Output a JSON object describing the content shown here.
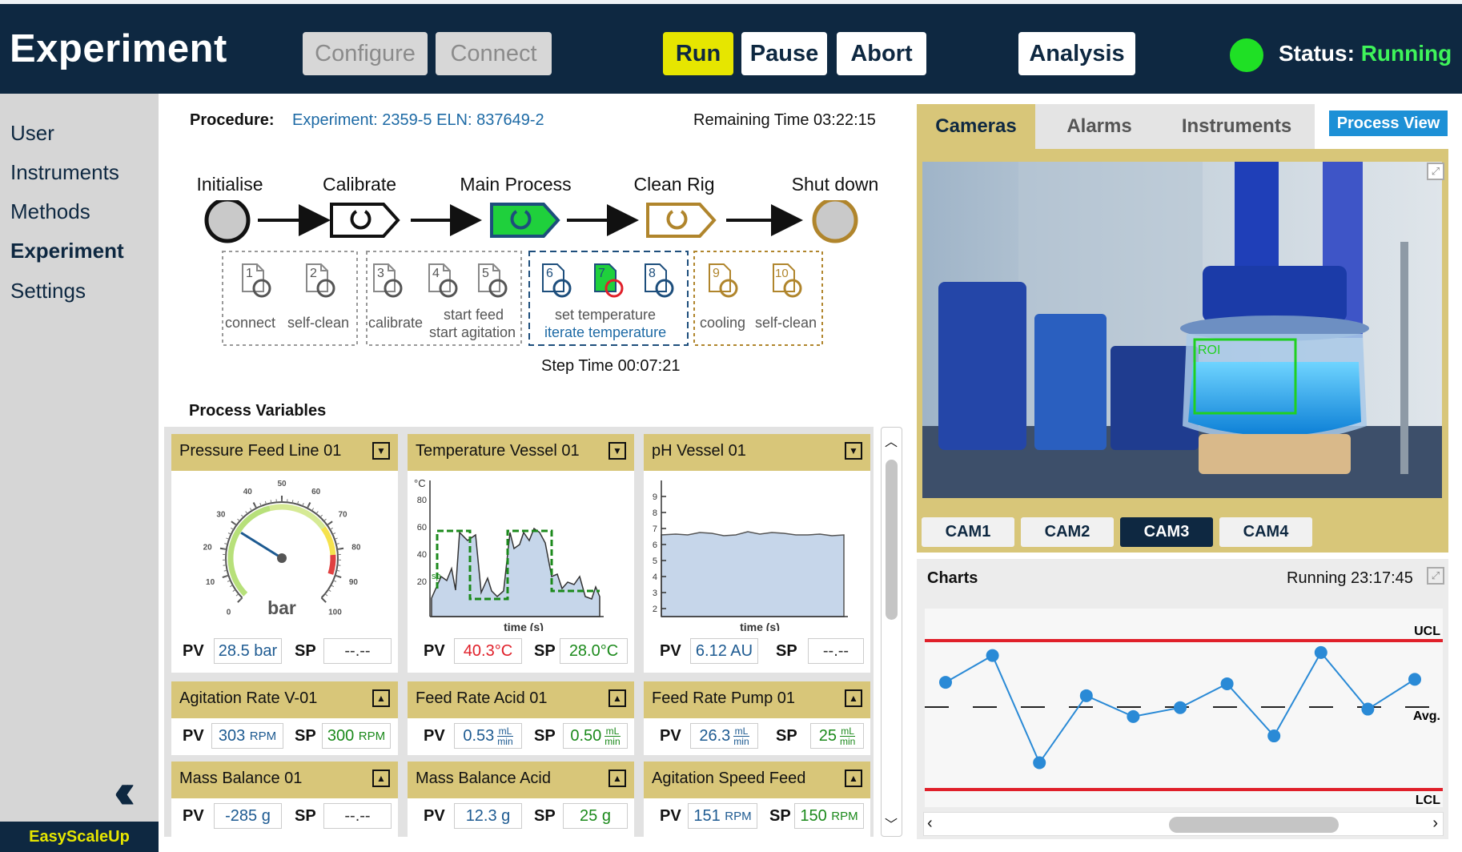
{
  "header": {
    "title": "Experiment",
    "buttons": {
      "configure": "Configure",
      "connect": "Connect",
      "run": "Run",
      "pause": "Pause",
      "abort": "Abort",
      "analysis": "Analysis"
    },
    "status_label": "Status:",
    "status_value": "Running",
    "status_color": "#1fe025"
  },
  "sidebar": {
    "items": [
      {
        "label": "User"
      },
      {
        "label": "Instruments"
      },
      {
        "label": "Methods"
      },
      {
        "label": "Experiment",
        "active": true
      },
      {
        "label": "Settings"
      }
    ],
    "collapse_icon": "double-chevron-left-icon",
    "brand": "EasyScaleUp"
  },
  "procedure": {
    "label": "Procedure:",
    "value": "Experiment: 2359-5 ELN: 837649-2",
    "remaining": "Remaining Time 03:22:15",
    "stages": [
      "Initialise",
      "Calibrate",
      "Main Process",
      "Clean Rig",
      "Shut down"
    ],
    "steps": [
      {
        "num": "1",
        "label": "connect"
      },
      {
        "num": "2",
        "label": "self-clean"
      },
      {
        "num": "3",
        "label": "calibrate"
      },
      {
        "num": "4",
        "label": ""
      },
      {
        "num": "5",
        "label": ""
      },
      {
        "num": "6",
        "label": ""
      },
      {
        "num": "7",
        "label": ""
      },
      {
        "num": "8",
        "label": ""
      },
      {
        "num": "9",
        "label": "cooling"
      },
      {
        "num": "10",
        "label": "self-clean"
      }
    ],
    "group_labels": {
      "start_feed": "start feed",
      "start_agitation": "start agitation",
      "set_temperature": "set temperature",
      "iterate_temperature": "iterate temperature"
    },
    "step_time": "Step Time 00:07:21"
  },
  "process_variables": {
    "title": "Process Variables",
    "cards": [
      {
        "title": "Pressure Feed Line 01",
        "pv": "28.5 bar",
        "sp": "--.--",
        "unit": "bar",
        "gauge_value": 28.5,
        "gauge_max": 100,
        "gauge_ticks": [
          "0",
          "10",
          "20",
          "30",
          "40",
          "50",
          "60",
          "70",
          "80",
          "90",
          "100"
        ]
      },
      {
        "title": "Temperature Vessel 01",
        "pv": "40.3°C",
        "sp": "28.0°C",
        "xlabel": "time (s)",
        "ylabel": "°C",
        "yticks": [
          "20",
          "40",
          "60",
          "80"
        ],
        "sp_label": "sp"
      },
      {
        "title": "pH Vessel 01",
        "pv": "6.12 AU",
        "sp": "--.--",
        "xlabel": "time (s)",
        "yticks": [
          "2",
          "3",
          "4",
          "5",
          "6",
          "7",
          "8",
          "9"
        ]
      },
      {
        "title": "Agitation Rate V-01",
        "pv_num": "303",
        "pv_unit": "RPM",
        "sp_num": "300",
        "sp_unit": "RPM"
      },
      {
        "title": "Feed Rate Acid 01",
        "pv_num": "0.53",
        "sp_num": "0.50",
        "frac_top": "mL",
        "frac_bottom": "min"
      },
      {
        "title": "Feed Rate Pump 01",
        "pv_num": "26.3",
        "sp_num": "25",
        "frac_top": "mL",
        "frac_bottom": "min"
      },
      {
        "title": "Mass Balance 01",
        "pv": "-285 g",
        "sp": "--.--"
      },
      {
        "title": "Mass Balance Acid",
        "pv": "12.3 g",
        "sp": "25 g"
      },
      {
        "title": "Agitation Speed Feed",
        "pv_num": "151",
        "pv_unit": "RPM",
        "sp_num": "150",
        "sp_unit": "RPM"
      }
    ],
    "pv_label": "PV",
    "sp_label": "SP"
  },
  "right_panel": {
    "tabs": [
      "Cameras",
      "Alarms",
      "Instruments"
    ],
    "process_view": "Process View",
    "roi_label": "ROI",
    "cams": [
      "CAM1",
      "CAM2",
      "CAM3",
      "CAM4"
    ],
    "selected_cam": "CAM3",
    "charts_title": "Charts",
    "charts_running": "Running 23:17:45",
    "control_chart": {
      "ucl": "UCL",
      "avg": "Avg.",
      "lcl": "LCL",
      "values": [
        0.72,
        0.9,
        0.18,
        0.63,
        0.49,
        0.55,
        0.71,
        0.36,
        0.92,
        0.54,
        0.74
      ]
    }
  }
}
